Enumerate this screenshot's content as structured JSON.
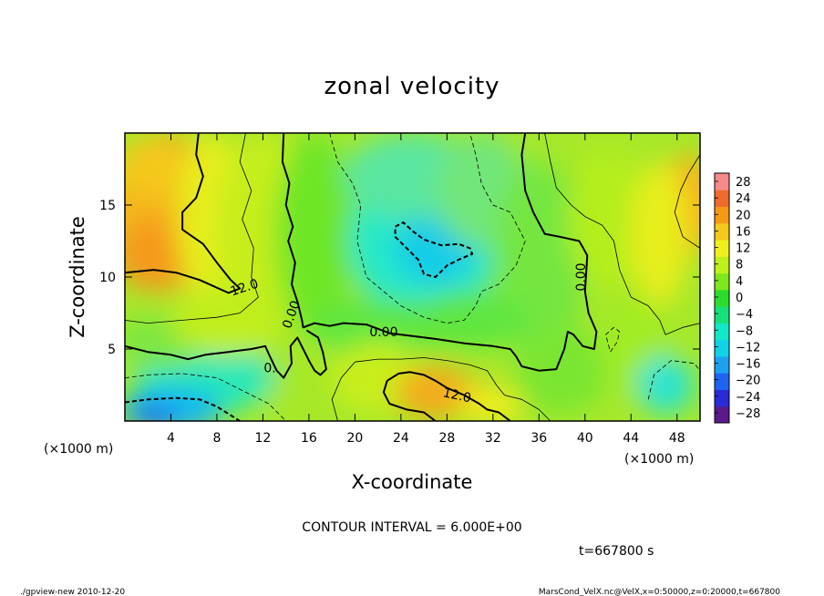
{
  "chart_data": {
    "type": "heatmap",
    "title": "zonal velocity",
    "xlabel": "X-coordinate",
    "ylabel": "Z-coordinate",
    "x_unit": "(×1000 m)",
    "y_unit": "(×1000 m)",
    "xlim": [
      0,
      50
    ],
    "ylim": [
      0,
      20
    ],
    "x_ticks": [
      4,
      8,
      12,
      16,
      20,
      24,
      28,
      32,
      36,
      40,
      44,
      48
    ],
    "y_ticks": [
      5,
      10,
      15
    ],
    "colorbar": {
      "levels": [
        -28,
        -24,
        -20,
        -16,
        -12,
        -8,
        -4,
        0,
        4,
        8,
        12,
        16,
        20,
        24,
        28
      ],
      "labels": [
        "28",
        "24",
        "20",
        "16",
        "12",
        "8",
        "4",
        "0",
        "−4",
        "−8",
        "−12",
        "−16",
        "−20",
        "−24",
        "−28"
      ],
      "colors": [
        "#5a1a8c",
        "#2a2ad8",
        "#1e64f0",
        "#1ea0f0",
        "#10d2e8",
        "#10e8c8",
        "#16e07a",
        "#2cdc2c",
        "#7ee61c",
        "#bef01c",
        "#f0f01c",
        "#f5c81c",
        "#f59a12",
        "#f06a2e",
        "#f58a8a"
      ]
    },
    "contour_labels": [
      {
        "text": "12.0",
        "x": 10.5,
        "z": 9.0,
        "rotate": -18
      },
      {
        "text": "0.00",
        "x": 14.8,
        "z": 7.3,
        "rotate": -70
      },
      {
        "text": "0.00",
        "x": 22.5,
        "z": 5.9,
        "rotate": 0
      },
      {
        "text": "12.0",
        "x": 28.8,
        "z": 1.5,
        "rotate": 12
      },
      {
        "text": "0.00",
        "x": 40.0,
        "z": 10.0,
        "rotate": -90
      },
      {
        "text": "0.",
        "x": 12.6,
        "z": 3.4,
        "rotate": 0
      }
    ],
    "contour_interval": "CONTOUR INTERVAL =  6.000E+00",
    "time": "t=667800 s"
  },
  "footer": {
    "left": "./gpview-new   2010-12-20",
    "right": "MarsCond_VelX.nc@VelX,x=0:50000,z=0:20000,t=667800"
  }
}
